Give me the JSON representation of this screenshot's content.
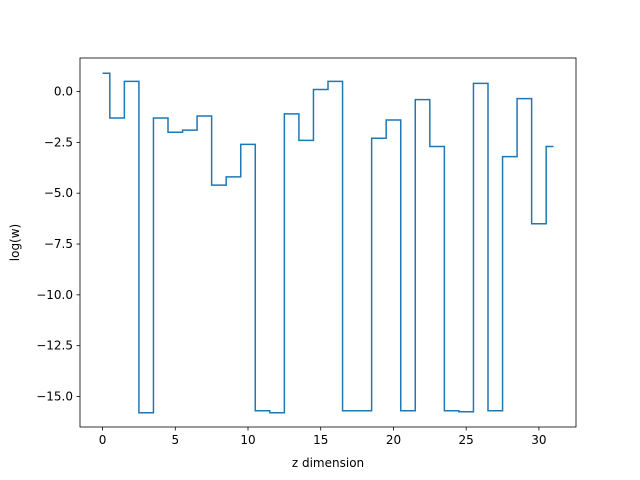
{
  "chart_data": {
    "type": "line",
    "drawstyle": "steps-mid",
    "title": "",
    "xlabel": "z dimension",
    "ylabel": "log(w)",
    "xlim": [
      -1.55,
      32.55
    ],
    "ylim": [
      -16.5,
      1.65
    ],
    "xticks": [
      0,
      5,
      10,
      15,
      20,
      25,
      30
    ],
    "yticks": [
      0.0,
      -2.5,
      -5.0,
      -7.5,
      -10.0,
      -12.5,
      -15.0
    ],
    "xtick_labels": [
      "0",
      "5",
      "10",
      "15",
      "20",
      "25",
      "30"
    ],
    "ytick_labels": [
      "0.0",
      "−2.5",
      "−5.0",
      "−7.5",
      "−10.0",
      "−12.5",
      "−15.0"
    ],
    "grid": false,
    "series": [
      {
        "color": "#1f77b4",
        "x": [
          0,
          1,
          2,
          3,
          4,
          5,
          6,
          7,
          8,
          9,
          10,
          11,
          12,
          13,
          14,
          15,
          16,
          17,
          18,
          19,
          20,
          21,
          22,
          23,
          24,
          25,
          26,
          27,
          28,
          29,
          30,
          31
        ],
        "y": [
          0.9,
          -1.3,
          0.5,
          -15.8,
          -1.3,
          -2.0,
          -1.9,
          -1.2,
          -4.6,
          -4.2,
          -2.6,
          -15.7,
          -15.8,
          -1.1,
          -2.4,
          0.1,
          0.5,
          -15.7,
          -15.7,
          -2.3,
          -1.4,
          -15.7,
          -0.4,
          -2.7,
          -15.7,
          -15.75,
          0.4,
          -15.7,
          -3.2,
          -0.35,
          -6.5,
          -2.7
        ]
      }
    ]
  }
}
